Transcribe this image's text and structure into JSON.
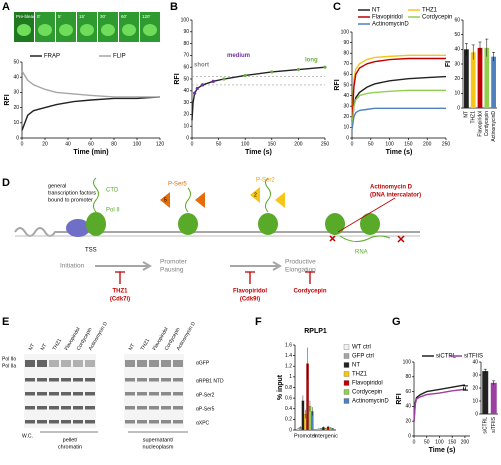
{
  "panel_labels": [
    "A",
    "B",
    "C",
    "D",
    "E",
    "F",
    "G"
  ],
  "panel_a_image": {
    "labels": [
      "Pre-bleach",
      "0'",
      "5'",
      "15'",
      "30'",
      "60'",
      "120'"
    ]
  },
  "chart_data": [
    {
      "type": "line",
      "ylabel": "RFI",
      "xlabel": "Time (min)",
      "legend": "top",
      "x": [
        0,
        5,
        10,
        20,
        30,
        45,
        60,
        80,
        100,
        120
      ],
      "series": [
        {
          "name": "FRAP",
          "color": "#222222",
          "values": [
            5,
            15,
            18,
            20,
            22,
            24,
            25,
            26,
            26,
            27
          ]
        },
        {
          "name": "FLIP",
          "color": "#a6a6a6",
          "values": [
            44,
            38,
            35,
            32,
            30,
            29,
            28,
            27,
            27,
            27
          ]
        }
      ],
      "xlim": [
        0,
        120
      ],
      "xticks": [
        0,
        20,
        40,
        60,
        80,
        100,
        120
      ],
      "ylim": [
        0,
        50
      ],
      "yticks": [
        0,
        10,
        20,
        30,
        40,
        50
      ]
    },
    {
      "type": "line",
      "ylabel": "RFI",
      "xlabel": "Time (s)",
      "annotations": [
        "short",
        "medium",
        "long"
      ],
      "reference_lines": [
        45,
        52
      ],
      "x": [
        0,
        2,
        5,
        10,
        20,
        40,
        60,
        100,
        150,
        200,
        250
      ],
      "series": [
        {
          "color": "#222222",
          "values": [
            15,
            30,
            38,
            42,
            45,
            48,
            50,
            53,
            56,
            58,
            60
          ]
        },
        {
          "color": "#7030a0",
          "mode": "markers",
          "values": [
            null,
            null,
            38,
            42,
            45,
            48,
            null,
            null,
            null,
            null,
            null
          ]
        },
        {
          "color": "#70ad47",
          "mode": "markers",
          "values": [
            null,
            null,
            null,
            null,
            null,
            null,
            50,
            53,
            56,
            58,
            60
          ]
        }
      ],
      "xlim": [
        0,
        250
      ],
      "xticks": [
        0,
        50,
        100,
        150,
        200,
        250
      ],
      "ylim": [
        0,
        100
      ],
      "yticks": [
        0,
        10,
        20,
        30,
        40,
        50,
        60,
        70,
        80,
        90,
        100
      ]
    },
    {
      "type": "line",
      "ylabel": "RFI",
      "xlabel": "Time (s)",
      "legend": "top",
      "x": [
        0,
        5,
        10,
        20,
        40,
        60,
        100,
        150,
        200,
        250
      ],
      "series": [
        {
          "name": "NT",
          "color": "#222222",
          "values": [
            10,
            30,
            38,
            43,
            48,
            51,
            54,
            56,
            57,
            58
          ]
        },
        {
          "name": "THZ1",
          "color": "#f5c518",
          "values": [
            15,
            55,
            65,
            70,
            74,
            76,
            77,
            78,
            78,
            78
          ]
        },
        {
          "name": "Flavopiridol",
          "color": "#c00000",
          "values": [
            12,
            48,
            60,
            66,
            70,
            72,
            74,
            75,
            75,
            75
          ]
        },
        {
          "name": "Cordycepin",
          "color": "#92d050",
          "values": [
            10,
            30,
            36,
            40,
            42,
            43,
            44,
            45,
            45,
            45
          ]
        },
        {
          "name": "ActinomycinD",
          "color": "#4f81bd",
          "values": [
            8,
            20,
            24,
            26,
            27,
            28,
            28,
            28,
            28,
            28
          ]
        }
      ],
      "xlim": [
        0,
        250
      ],
      "xticks": [
        0,
        50,
        100,
        150,
        200,
        250
      ],
      "ylim": [
        0,
        100
      ],
      "yticks": [
        0,
        10,
        20,
        30,
        40,
        50,
        60,
        70,
        80,
        90,
        100
      ]
    },
    {
      "type": "bar",
      "ylabel": "FI",
      "categories": [
        "NT",
        "THZ1",
        "Flavopiridol",
        "Cordycepin",
        "ActinomycinD"
      ],
      "values": [
        40,
        38,
        41,
        41,
        35
      ],
      "errors": [
        4,
        5,
        4,
        6,
        3
      ],
      "colors": [
        "#222222",
        "#f5c518",
        "#c00000",
        "#92d050",
        "#4f81bd"
      ],
      "ylim": [
        0,
        60
      ],
      "yticks": [
        0,
        10,
        20,
        30,
        40,
        50,
        60
      ]
    },
    {
      "type": "bar",
      "title": "RPLP1",
      "ylabel": "% input",
      "legend": "right",
      "categories": [
        "Promoter",
        "Intergenic"
      ],
      "series": [
        {
          "name": "WT ctrl",
          "color": "#f2f2f2",
          "values": [
            0.03,
            0.02
          ],
          "errors": [
            0.01,
            0.01
          ]
        },
        {
          "name": "GFP ctrl",
          "color": "#a6a6a6",
          "values": [
            0.05,
            0.03
          ],
          "errors": [
            0.02,
            0.01
          ]
        },
        {
          "name": "NT",
          "color": "#222222",
          "values": [
            0.55,
            0.05
          ],
          "errors": [
            0.1,
            0.02
          ]
        },
        {
          "name": "THZ1",
          "color": "#f5c518",
          "values": [
            0.3,
            0.03
          ],
          "errors": [
            0.08,
            0.01
          ]
        },
        {
          "name": "Flavopiridol",
          "color": "#c00000",
          "values": [
            1.25,
            0.06
          ],
          "errors": [
            0.3,
            0.02
          ]
        },
        {
          "name": "Cordycepin",
          "color": "#92d050",
          "values": [
            0.45,
            0.04
          ],
          "errors": [
            0.1,
            0.01
          ]
        },
        {
          "name": "ActinomycinD",
          "color": "#4f81bd",
          "values": [
            0.35,
            0.03
          ],
          "errors": [
            0.08,
            0.01
          ]
        }
      ],
      "ylim": [
        0,
        1.6
      ],
      "yticks": [
        0,
        0.2,
        0.4,
        0.6,
        0.8,
        1,
        1.2,
        1.4,
        1.6
      ]
    },
    {
      "type": "line",
      "ylabel": "RFI",
      "xlabel": "Time (s)",
      "legend": "top",
      "x": [
        0,
        5,
        10,
        25,
        50,
        100,
        150,
        200
      ],
      "series": [
        {
          "name": "siCTRL",
          "color": "#222222",
          "values": [
            20,
            45,
            52,
            56,
            60,
            63,
            66,
            69
          ]
        },
        {
          "name": "siTFIIS",
          "color": "#9b3fa0",
          "values": [
            20,
            43,
            50,
            53,
            56,
            58,
            61,
            63
          ]
        }
      ],
      "xlim": [
        0,
        220
      ],
      "xticks": [
        0,
        50,
        100,
        150,
        200
      ],
      "ylim": [
        0,
        100
      ],
      "yticks": [
        0,
        20,
        40,
        60,
        80,
        100
      ]
    },
    {
      "type": "bar",
      "ylabel": "FI",
      "categories": [
        "siCTRL",
        "siTFIIS"
      ],
      "values": [
        33,
        24
      ],
      "errors": [
        1.5,
        1.5
      ],
      "colors": [
        "#222222",
        "#9b3fa0"
      ],
      "ylim": [
        0,
        40
      ],
      "yticks": [
        0,
        10,
        20,
        30,
        40
      ]
    }
  ],
  "diagram": {
    "gtf": [
      "general",
      "transcription factors",
      "bound to promoter"
    ],
    "ctd": "CTD",
    "pol2": "Pol II",
    "pser5": "P-Ser5",
    "pser2": "P-Ser2",
    "s5": "5",
    "s2": "2",
    "actd": "Actinomycin D",
    "actd_note": "(DNA intercalator)",
    "tss": "TSS",
    "rna": "RNA",
    "steps": [
      "Initiation",
      "Promoter",
      "Pausing",
      "Productive",
      "Elongation"
    ],
    "inhibitors": [
      "THZ1",
      "(Cdk7i)",
      "Flavopiridol",
      "(Cdk9i)",
      "Cordycepin"
    ]
  },
  "blot": {
    "lanes_left": [
      "NT",
      "NT",
      "THZ1",
      "Flavopiridol",
      "Cordycepin",
      "Actinomycin D"
    ],
    "lanes_right": [
      "NT",
      "THZ1",
      "Flavopiridol",
      "Cordycepin",
      "Actinomycin D"
    ],
    "pol_forms": [
      "Pol IIo",
      "Pol IIa"
    ],
    "antibodies": [
      "αGFP",
      "αRPB1 NTD",
      "αP-Ser2",
      "αP-Ser5",
      "αXPC"
    ],
    "wc": "W.C.",
    "pellet": [
      "pellet/",
      "chromatin"
    ],
    "sup": [
      "supernatant/",
      "nucleoplasm"
    ]
  }
}
